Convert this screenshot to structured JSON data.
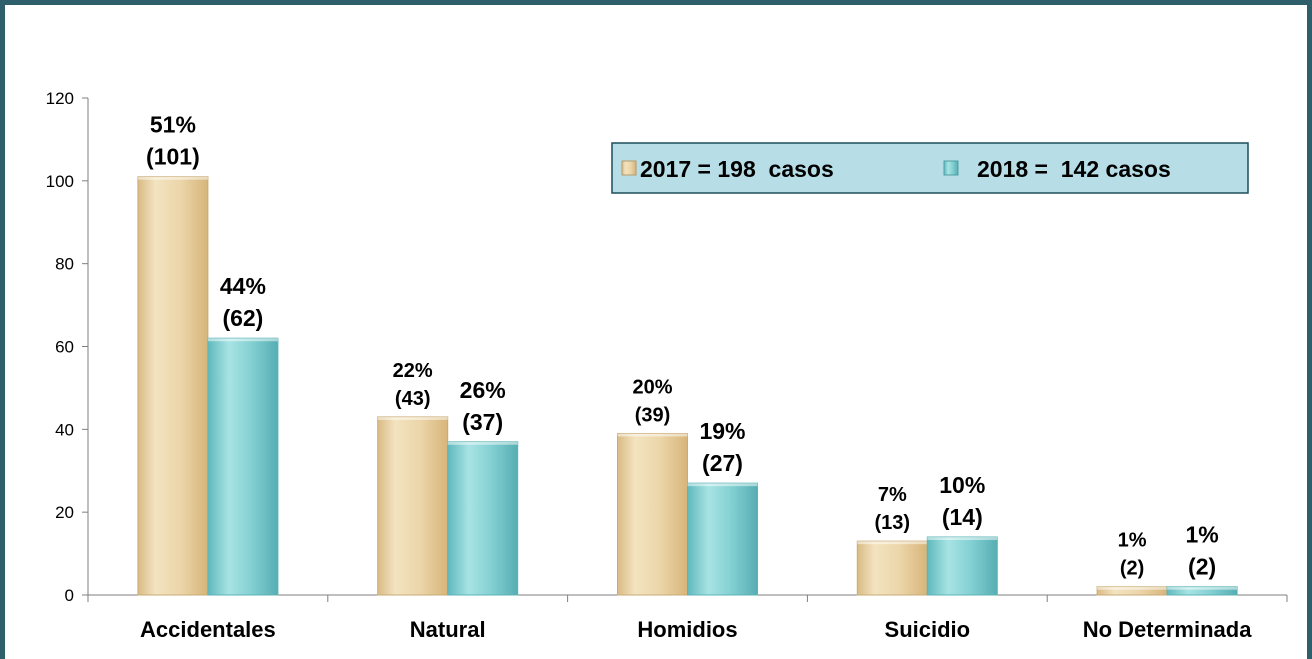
{
  "chart_data": {
    "type": "bar",
    "categories": [
      "Accidentales",
      "Natural",
      "Homidios",
      "Suicidio",
      "No Determinada"
    ],
    "series": [
      {
        "name": "2017 = 198  casos",
        "values": [
          101,
          43,
          39,
          13,
          2
        ],
        "labels": [
          [
            "51%",
            "(101)"
          ],
          [
            "22%",
            "(43)"
          ],
          [
            "20%",
            "(39)"
          ],
          [
            "7%",
            "(13)"
          ],
          [
            "1%",
            "(2)"
          ]
        ],
        "color": "#e9d2a3"
      },
      {
        "name": "2018 =  142 casos",
        "values": [
          62,
          37,
          27,
          14,
          2
        ],
        "labels": [
          [
            "44%",
            "(62)"
          ],
          [
            "26%",
            "(37)"
          ],
          [
            "19%",
            "(27)"
          ],
          [
            "10%",
            "(14)"
          ],
          [
            "1%",
            "(2)"
          ]
        ],
        "color": "#8ed6d8"
      }
    ],
    "yticks": [
      "0",
      "20",
      "40",
      "60",
      "80",
      "100",
      "120"
    ],
    "ylim": [
      0,
      120
    ],
    "grid": false,
    "legend_position": "top-right",
    "xlabel": "",
    "ylabel": "",
    "title": ""
  }
}
